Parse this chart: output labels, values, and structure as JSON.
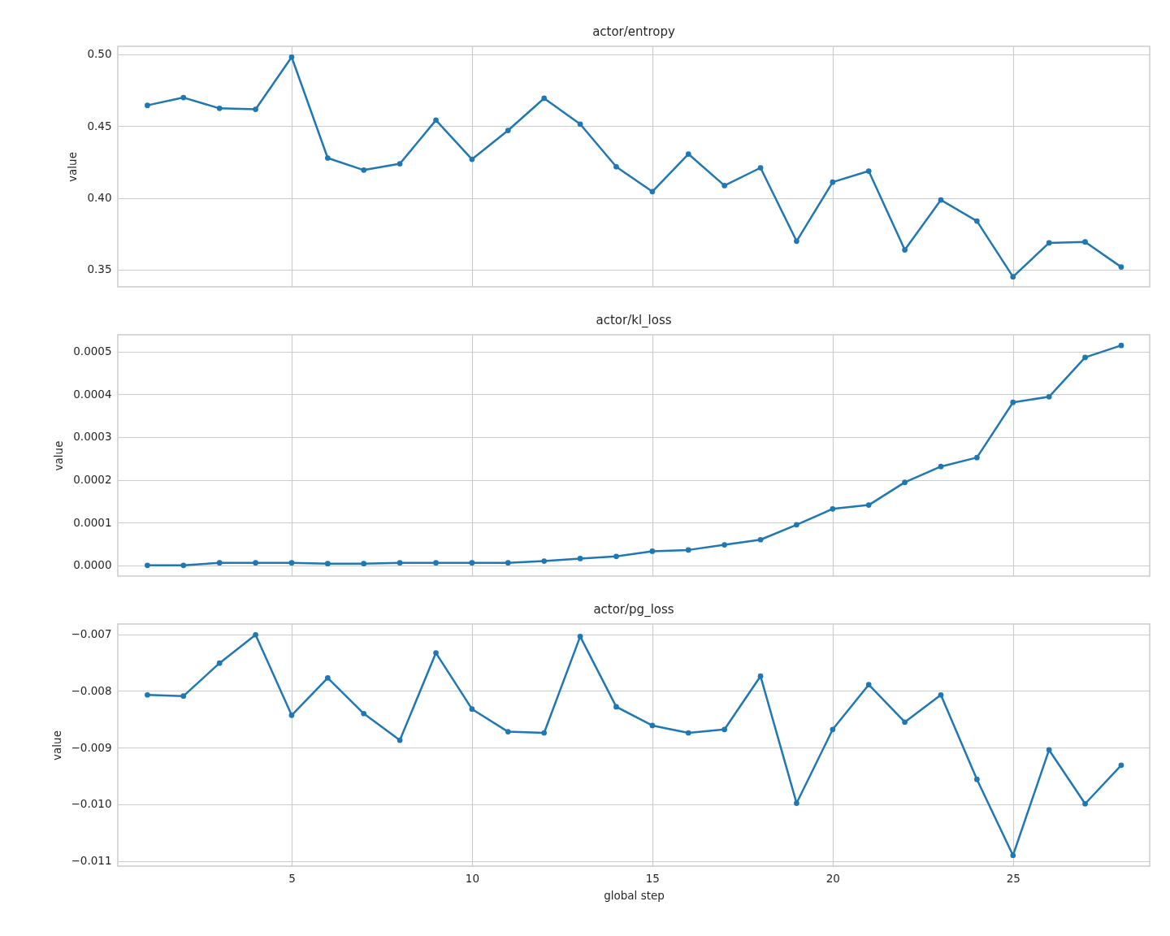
{
  "chart_data": [
    {
      "type": "line",
      "title": "actor/entropy",
      "ylabel": "value",
      "x": [
        1,
        2,
        3,
        4,
        5,
        6,
        7,
        8,
        9,
        10,
        11,
        12,
        13,
        14,
        15,
        16,
        17,
        18,
        19,
        20,
        21,
        22,
        23,
        24,
        25,
        26,
        27,
        28
      ],
      "series": [
        {
          "color": "#1f77b4",
          "values": [
            0.4645,
            0.4699,
            0.4624,
            0.4617,
            0.4981,
            0.4278,
            0.4194,
            0.4238,
            0.4542,
            0.4269,
            0.447,
            0.4694,
            0.4514,
            0.4217,
            0.4044,
            0.4306,
            0.4086,
            0.421,
            0.3699,
            0.411,
            0.4187,
            0.3638,
            0.3986,
            0.3839,
            0.3451,
            0.3687,
            0.3694,
            0.3519
          ]
        }
      ],
      "xlim": [
        0.18,
        28.79
      ],
      "xticks": [
        5,
        10,
        15,
        20,
        25
      ],
      "ylim": [
        0.3381,
        0.5056
      ],
      "yticks": [
        {
          "value": 0.35,
          "label": "0.35"
        },
        {
          "value": 0.4,
          "label": "0.40"
        },
        {
          "value": 0.45,
          "label": "0.45"
        },
        {
          "value": 0.5,
          "label": "0.50"
        }
      ],
      "grid": true,
      "marker": "circle",
      "tick_labels": "y"
    },
    {
      "type": "line",
      "title": "actor/kl_loss",
      "ylabel": "value",
      "x": [
        1,
        2,
        3,
        4,
        5,
        6,
        7,
        8,
        9,
        10,
        11,
        12,
        13,
        14,
        15,
        16,
        17,
        18,
        19,
        20,
        21,
        22,
        23,
        24,
        25,
        26,
        27,
        28
      ],
      "series": [
        {
          "color": "#1f77b4",
          "values": [
            0,
            0,
            6e-06,
            6e-06,
            6e-06,
            4e-06,
            4e-06,
            6e-06,
            6e-06,
            6e-06,
            6e-06,
            1e-05,
            1.6e-05,
            2.1e-05,
            3.3e-05,
            3.6e-05,
            4.8e-05,
            6e-05,
            9.5e-05,
            0.000132,
            0.000141,
            0.000194,
            0.000231,
            0.000252,
            0.000381,
            0.000394,
            0.000486,
            0.000514
          ]
        }
      ],
      "xlim": [
        0.18,
        28.79
      ],
      "xticks": [
        5,
        10,
        15,
        20,
        25
      ],
      "ylim": [
        -2.5e-05,
        0.000539
      ],
      "yticks": [
        {
          "value": 0,
          "label": "0.0000"
        },
        {
          "value": 0.0001,
          "label": "0.0001"
        },
        {
          "value": 0.0002,
          "label": "0.0002"
        },
        {
          "value": 0.0003,
          "label": "0.0003"
        },
        {
          "value": 0.0004,
          "label": "0.0004"
        },
        {
          "value": 0.0005,
          "label": "0.0005"
        }
      ],
      "grid": true,
      "marker": "circle",
      "tick_labels": "y"
    },
    {
      "type": "line",
      "title": "actor/pg_loss",
      "xlabel": "global step",
      "ylabel": "value",
      "x": [
        1,
        2,
        3,
        4,
        5,
        6,
        7,
        8,
        9,
        10,
        11,
        12,
        13,
        14,
        15,
        16,
        17,
        18,
        19,
        20,
        21,
        22,
        23,
        24,
        25,
        26,
        27,
        28
      ],
      "series": [
        {
          "color": "#1f77b4",
          "values": [
            -0.00807,
            -0.00809,
            -0.00751,
            -0.00701,
            -0.00843,
            -0.00777,
            -0.0084,
            -0.00887,
            -0.00733,
            -0.00832,
            -0.00872,
            -0.00874,
            -0.00704,
            -0.00828,
            -0.00861,
            -0.00874,
            -0.00868,
            -0.00774,
            -0.00998,
            -0.00868,
            -0.00789,
            -0.00855,
            -0.00807,
            -0.00956,
            -0.0109,
            -0.00904,
            -0.00999,
            -0.00931
          ]
        }
      ],
      "xlim": [
        0.18,
        28.79
      ],
      "xticks": [
        5,
        10,
        15,
        20,
        25
      ],
      "ylim": [
        -0.01109,
        -0.00682
      ],
      "yticks": [
        {
          "value": -0.011,
          "label": "−0.011"
        },
        {
          "value": -0.01,
          "label": "−0.010"
        },
        {
          "value": -0.009,
          "label": "−0.009"
        },
        {
          "value": -0.008,
          "label": "−0.008"
        },
        {
          "value": -0.007,
          "label": "−0.007"
        }
      ],
      "grid": true,
      "marker": "circle"
    }
  ]
}
